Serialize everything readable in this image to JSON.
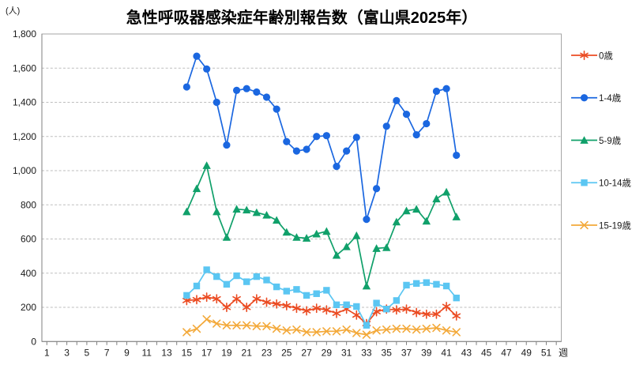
{
  "title": "急性呼吸器感染症年齢別報告数（富山県2025年）",
  "y_axis": {
    "unit": "(人)",
    "tick_labels": [
      "0",
      "200",
      "400",
      "600",
      "800",
      "1,000",
      "1,200",
      "1,400",
      "1,600",
      "1,800"
    ]
  },
  "x_axis": {
    "label": "週",
    "tick_labels": [
      "1",
      "3",
      "5",
      "7",
      "9",
      "11",
      "13",
      "15",
      "17",
      "19",
      "21",
      "23",
      "25",
      "27",
      "29",
      "31",
      "33",
      "35",
      "37",
      "39",
      "41",
      "43",
      "45",
      "47",
      "49",
      "51"
    ]
  },
  "chart_data": {
    "type": "line",
    "title": "急性呼吸器感染症年齢別報告数（富山県2025年）",
    "xlabel": "週",
    "ylabel": "(人)",
    "ylim": [
      0,
      1800
    ],
    "y_tick_interval": 200,
    "xlim_weeks": [
      1,
      52
    ],
    "grid": true,
    "legend_position": "right",
    "x": [
      15,
      16,
      17,
      18,
      19,
      20,
      21,
      22,
      23,
      24,
      25,
      26,
      27,
      28,
      29,
      30,
      31,
      32,
      33,
      34,
      35,
      36,
      37,
      38,
      39,
      40,
      41,
      42
    ],
    "series": [
      {
        "name": "0歳",
        "marker": "asterisk",
        "color": "#EB4B22",
        "values": [
          240,
          245,
          260,
          250,
          200,
          250,
          200,
          250,
          230,
          220,
          210,
          195,
          180,
          195,
          185,
          165,
          190,
          155,
          105,
          175,
          190,
          185,
          190,
          170,
          160,
          160,
          205,
          150
        ]
      },
      {
        "name": "1-4歳",
        "marker": "circle",
        "color": "#1B67E0",
        "values": [
          1490,
          1670,
          1595,
          1400,
          1150,
          1470,
          1480,
          1460,
          1430,
          1360,
          1170,
          1115,
          1125,
          1200,
          1205,
          1025,
          1115,
          1195,
          715,
          895,
          1260,
          1410,
          1330,
          1210,
          1275,
          1465,
          1480,
          1090
        ]
      },
      {
        "name": "5-9歳",
        "marker": "triangle",
        "color": "#10A06A",
        "values": [
          760,
          895,
          1030,
          760,
          610,
          775,
          770,
          755,
          740,
          710,
          640,
          610,
          605,
          630,
          645,
          505,
          555,
          620,
          325,
          545,
          550,
          700,
          765,
          775,
          705,
          835,
          875,
          730
        ]
      },
      {
        "name": "10-14歳",
        "marker": "square",
        "color": "#5BC6F2",
        "values": [
          270,
          325,
          420,
          380,
          335,
          385,
          350,
          380,
          360,
          320,
          295,
          305,
          270,
          280,
          300,
          215,
          215,
          205,
          95,
          225,
          190,
          240,
          330,
          340,
          345,
          335,
          325,
          255
        ]
      },
      {
        "name": "15-19歳",
        "marker": "x",
        "color": "#F3A93A",
        "values": [
          55,
          75,
          130,
          105,
          95,
          95,
          95,
          90,
          90,
          75,
          65,
          70,
          55,
          55,
          60,
          60,
          70,
          50,
          40,
          65,
          70,
          75,
          75,
          70,
          75,
          80,
          65,
          55
        ]
      }
    ],
    "colors": {
      "gridline": "#BDBDBD",
      "axis": "#7F7F7F",
      "plot_border": "#A6A6A6"
    }
  }
}
